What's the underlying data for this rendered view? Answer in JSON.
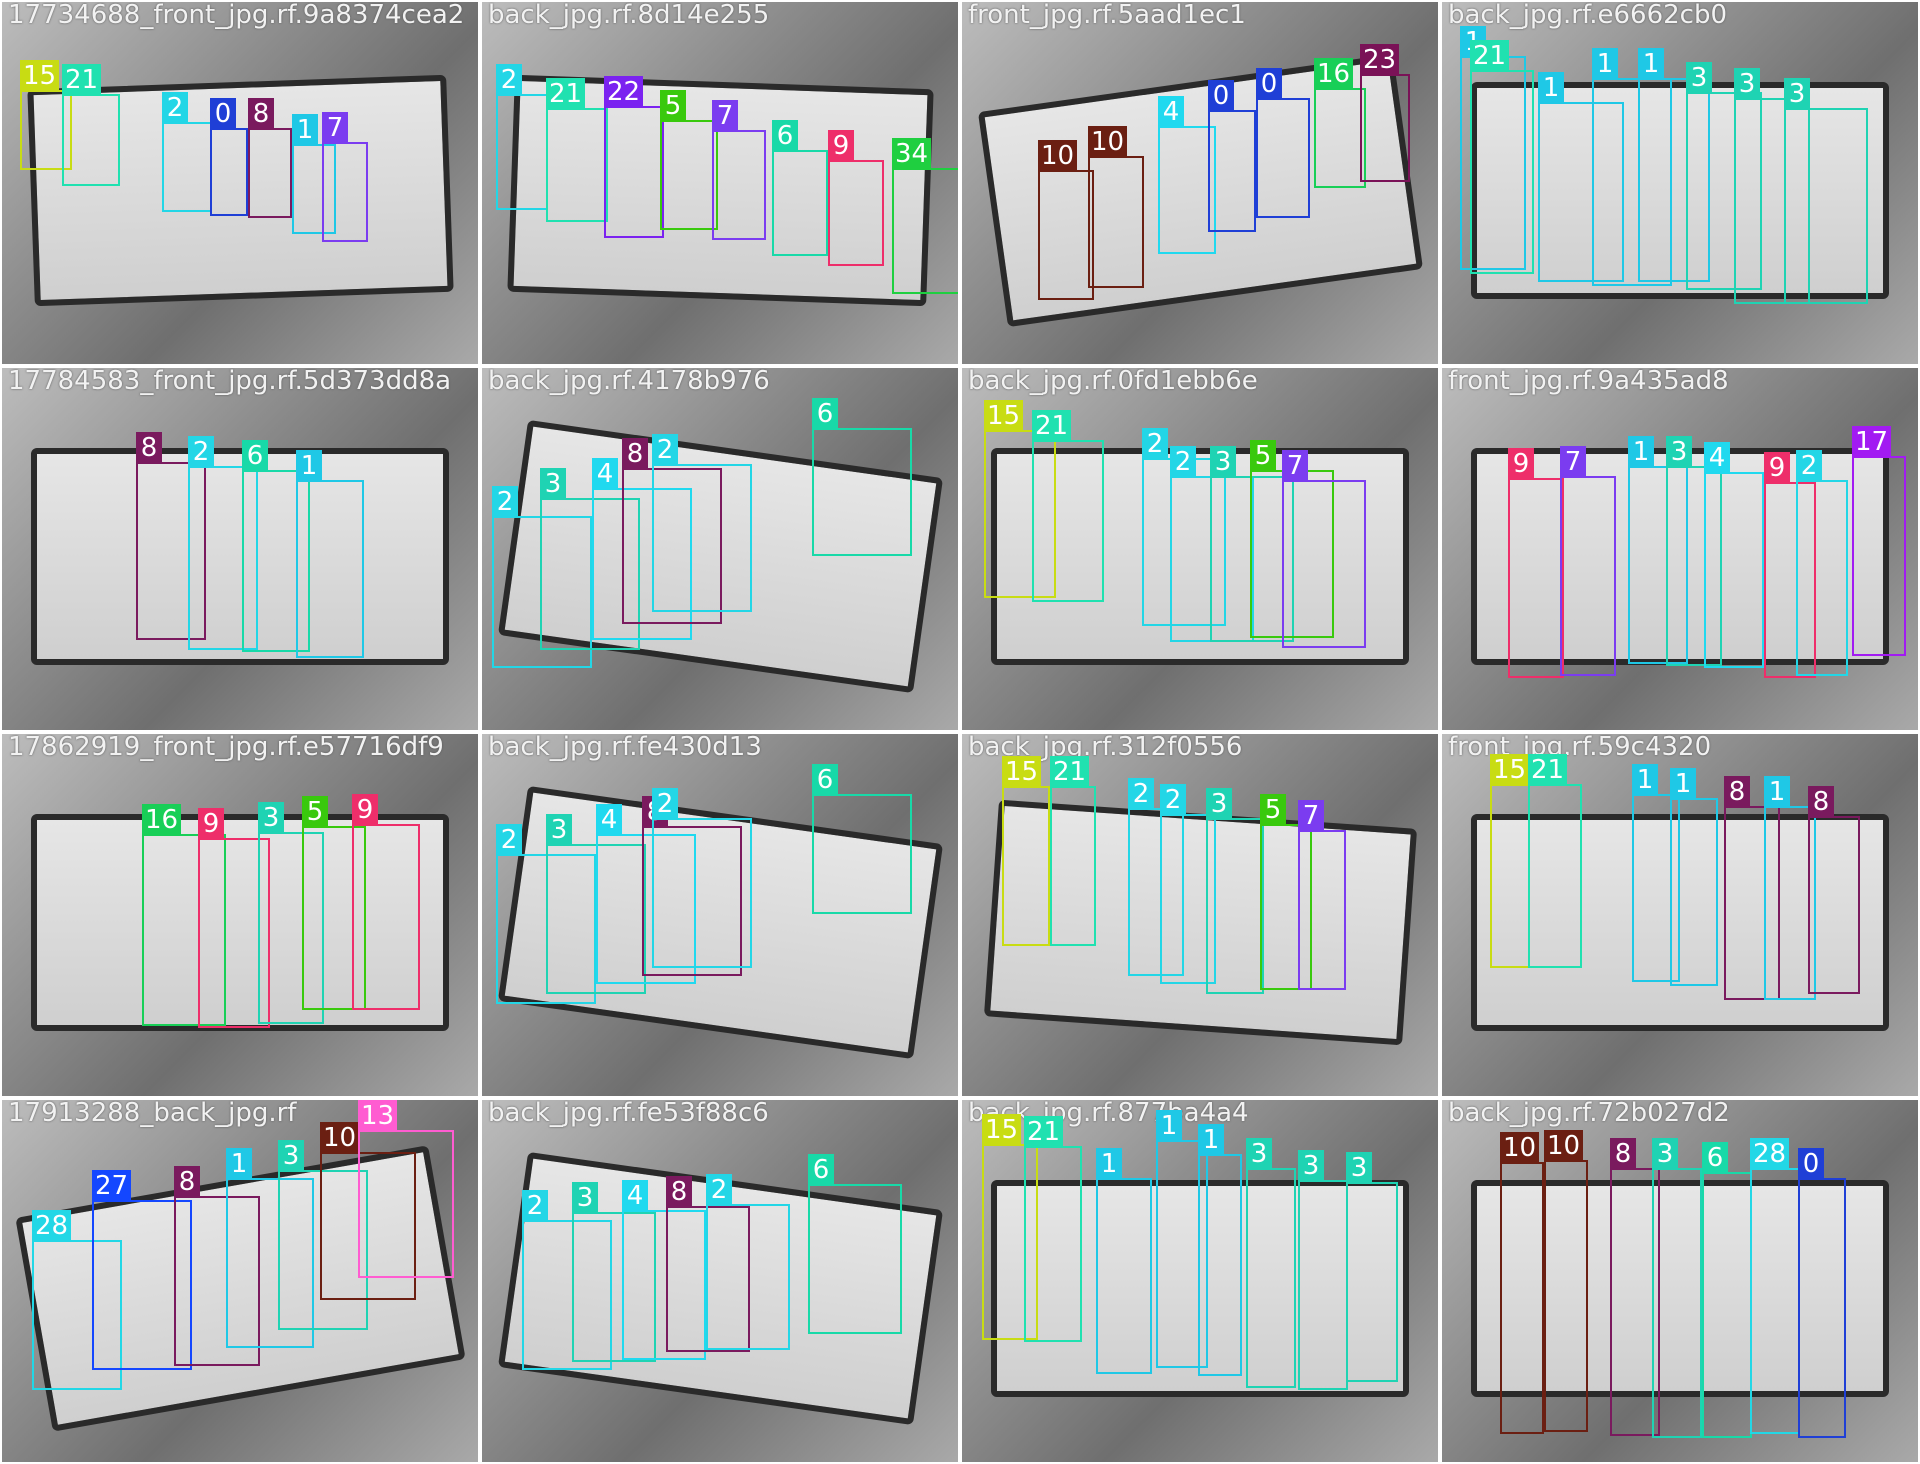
{
  "mosaic": {
    "cols": 4,
    "rows": 4,
    "class_colors": {
      "0": "#1f3fd6",
      "1": "#1fc8e6",
      "2": "#23d6e6",
      "3": "#1fd3b3",
      "4": "#20d9ef",
      "5": "#39c90d",
      "6": "#18d9a8",
      "7": "#7b3cf0",
      "8": "#7a1a5e",
      "9": "#ee2e6a",
      "10": "#6b1f12",
      "13": "#ff5cd1",
      "15": "#c8dc13",
      "16": "#18cf57",
      "17": "#a21bf2",
      "21": "#20e1b0",
      "22": "#7b22f0",
      "23": "#7a1257",
      "27": "#1447ff",
      "28": "#22d7e6",
      "34": "#1fcf40"
    },
    "tiles": [
      {
        "title": "17734688_front_jpg.rf.9a8374cea2",
        "labels": [
          {
            "cls": "15",
            "text": "15"
          },
          {
            "cls": "21",
            "text": "21"
          },
          {
            "cls": "2",
            "text": "2"
          },
          {
            "cls": "0",
            "text": "0"
          },
          {
            "cls": "8",
            "text": "8"
          },
          {
            "cls": "1",
            "text": "1"
          },
          {
            "cls": "7",
            "text": "7"
          }
        ]
      },
      {
        "title": "back_jpg.rf.8d14e255",
        "labels": [
          {
            "cls": "2",
            "text": "2"
          },
          {
            "cls": "21",
            "text": "21"
          },
          {
            "cls": "22",
            "text": "22"
          },
          {
            "cls": "5",
            "text": "5"
          },
          {
            "cls": "7",
            "text": "7"
          },
          {
            "cls": "6",
            "text": "6"
          },
          {
            "cls": "9",
            "text": "9"
          },
          {
            "cls": "34",
            "text": "34"
          }
        ]
      },
      {
        "title": "front_jpg.rf.5aad1ec1",
        "labels": [
          {
            "cls": "10",
            "text": "10"
          },
          {
            "cls": "10",
            "text": "10"
          },
          {
            "cls": "4",
            "text": "4"
          },
          {
            "cls": "0",
            "text": "0"
          },
          {
            "cls": "0",
            "text": "0"
          },
          {
            "cls": "16",
            "text": "16"
          },
          {
            "cls": "23",
            "text": "23"
          }
        ]
      },
      {
        "title": "back_jpg.rf.e6662cb0",
        "labels": [
          {
            "cls": "1",
            "text": "1"
          },
          {
            "cls": "21",
            "text": "21"
          },
          {
            "cls": "1",
            "text": "1"
          },
          {
            "cls": "1",
            "text": "1"
          },
          {
            "cls": "1",
            "text": "1"
          },
          {
            "cls": "3",
            "text": "3"
          },
          {
            "cls": "3",
            "text": "3"
          },
          {
            "cls": "3",
            "text": "3"
          }
        ]
      },
      {
        "title": "17784583_front_jpg.rf.5d373dd8a",
        "labels": [
          {
            "cls": "8",
            "text": "8"
          },
          {
            "cls": "2",
            "text": "2"
          },
          {
            "cls": "6",
            "text": "6"
          },
          {
            "cls": "1",
            "text": "1"
          }
        ]
      },
      {
        "title": "back_jpg.rf.4178b976",
        "labels": [
          {
            "cls": "2",
            "text": "2"
          },
          {
            "cls": "3",
            "text": "3"
          },
          {
            "cls": "4",
            "text": "4"
          },
          {
            "cls": "8",
            "text": "8"
          },
          {
            "cls": "2",
            "text": "2"
          },
          {
            "cls": "6",
            "text": "6"
          }
        ]
      },
      {
        "title": "back_jpg.rf.0fd1ebb6e",
        "labels": [
          {
            "cls": "15",
            "text": "15"
          },
          {
            "cls": "21",
            "text": "21"
          },
          {
            "cls": "2",
            "text": "2"
          },
          {
            "cls": "2",
            "text": "2"
          },
          {
            "cls": "3",
            "text": "3"
          },
          {
            "cls": "5",
            "text": "5"
          },
          {
            "cls": "7",
            "text": "7"
          }
        ]
      },
      {
        "title": "front_jpg.rf.9a435ad8",
        "labels": [
          {
            "cls": "9",
            "text": "9"
          },
          {
            "cls": "7",
            "text": "7"
          },
          {
            "cls": "1",
            "text": "1"
          },
          {
            "cls": "3",
            "text": "3"
          },
          {
            "cls": "4",
            "text": "4"
          },
          {
            "cls": "9",
            "text": "9"
          },
          {
            "cls": "2",
            "text": "2"
          },
          {
            "cls": "17",
            "text": "17"
          }
        ]
      },
      {
        "title": "17862919_front_jpg.rf.e57716df9",
        "labels": [
          {
            "cls": "16",
            "text": "16"
          },
          {
            "cls": "9",
            "text": "9"
          },
          {
            "cls": "3",
            "text": "3"
          },
          {
            "cls": "5",
            "text": "5"
          },
          {
            "cls": "9",
            "text": "9"
          }
        ]
      },
      {
        "title": "back_jpg.rf.fe430d13",
        "labels": [
          {
            "cls": "2",
            "text": "2"
          },
          {
            "cls": "3",
            "text": "3"
          },
          {
            "cls": "4",
            "text": "4"
          },
          {
            "cls": "8",
            "text": "8"
          },
          {
            "cls": "2",
            "text": "2"
          },
          {
            "cls": "6",
            "text": "6"
          }
        ]
      },
      {
        "title": "back_jpg.rf.312f0556",
        "labels": [
          {
            "cls": "15",
            "text": "15"
          },
          {
            "cls": "21",
            "text": "21"
          },
          {
            "cls": "2",
            "text": "2"
          },
          {
            "cls": "2",
            "text": "2"
          },
          {
            "cls": "3",
            "text": "3"
          },
          {
            "cls": "5",
            "text": "5"
          },
          {
            "cls": "7",
            "text": "7"
          }
        ]
      },
      {
        "title": "front_jpg.rf.59c4320",
        "labels": [
          {
            "cls": "15",
            "text": "15"
          },
          {
            "cls": "21",
            "text": "21"
          },
          {
            "cls": "1",
            "text": "1"
          },
          {
            "cls": "1",
            "text": "1"
          },
          {
            "cls": "8",
            "text": "8"
          },
          {
            "cls": "1",
            "text": "1"
          },
          {
            "cls": "8",
            "text": "8"
          }
        ]
      },
      {
        "title": "17913288_back_jpg.rf",
        "labels": [
          {
            "cls": "28",
            "text": "28"
          },
          {
            "cls": "27",
            "text": "27"
          },
          {
            "cls": "8",
            "text": "8"
          },
          {
            "cls": "1",
            "text": "1"
          },
          {
            "cls": "3",
            "text": "3"
          },
          {
            "cls": "10",
            "text": "10"
          },
          {
            "cls": "13",
            "text": "13"
          }
        ]
      },
      {
        "title": "back_jpg.rf.fe53f88c6",
        "labels": [
          {
            "cls": "2",
            "text": "2"
          },
          {
            "cls": "3",
            "text": "3"
          },
          {
            "cls": "4",
            "text": "4"
          },
          {
            "cls": "8",
            "text": "8"
          },
          {
            "cls": "2",
            "text": "2"
          },
          {
            "cls": "6",
            "text": "6"
          }
        ]
      },
      {
        "title": "back_jpg.rf.877ba4a4",
        "labels": [
          {
            "cls": "15",
            "text": "15"
          },
          {
            "cls": "21",
            "text": "21"
          },
          {
            "cls": "1",
            "text": "1"
          },
          {
            "cls": "1",
            "text": "1"
          },
          {
            "cls": "1",
            "text": "1"
          },
          {
            "cls": "3",
            "text": "3"
          },
          {
            "cls": "3",
            "text": "3"
          },
          {
            "cls": "3",
            "text": "3"
          }
        ]
      },
      {
        "title": "back_jpg.rf.72b027d2",
        "labels": [
          {
            "cls": "10",
            "text": "10"
          },
          {
            "cls": "10",
            "text": "10"
          },
          {
            "cls": "8",
            "text": "8"
          },
          {
            "cls": "3",
            "text": "3"
          },
          {
            "cls": "6",
            "text": "6"
          },
          {
            "cls": "28",
            "text": "28"
          },
          {
            "cls": "0",
            "text": "0"
          }
        ]
      }
    ]
  }
}
